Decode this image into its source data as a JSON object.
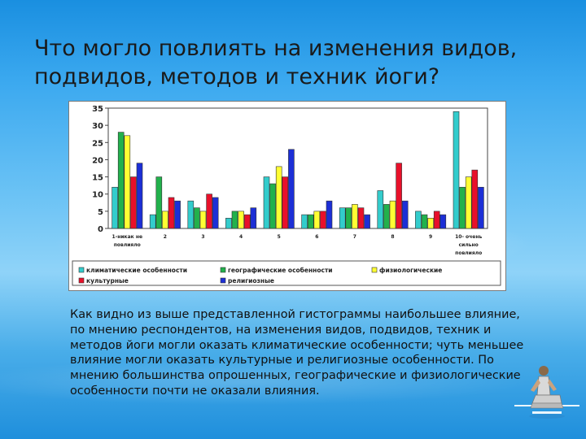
{
  "slide": {
    "title_lines": [
      "Что могло повлиять на изменения видов,",
      "подвидов, методов и техник йоги?"
    ],
    "body_text": "Как видно из выше представленной гистограммы наибольшее влияние, по мнению респондентов, на изменения видов, подвидов, техник и методов йоги могли оказать климатические особенности; чуть меньшее влияние могли оказать культурные и религиозные особенности. По мнению большинства опрошенных, географические и физиологические особенности почти не оказали влияния.",
    "image_icon": "yoga-figure-icon"
  },
  "chart_data": {
    "type": "bar",
    "y_ticks": [
      "0",
      "5",
      "10",
      "15",
      "20",
      "25",
      "30",
      "35"
    ],
    "ylim": [
      0,
      35
    ],
    "grid": false,
    "legend_position": "bottom",
    "categories": [
      [
        "1-никак не",
        "повлияло"
      ],
      [
        "2"
      ],
      [
        "3"
      ],
      [
        "4"
      ],
      [
        "5"
      ],
      [
        "6"
      ],
      [
        "7"
      ],
      [
        "8"
      ],
      [
        "9"
      ],
      [
        "10- очень",
        "сильно",
        "повлияло"
      ]
    ],
    "series": [
      {
        "name": "климатические особенности",
        "color": "#33cccc",
        "values": [
          12,
          4,
          8,
          3,
          15,
          4,
          6,
          11,
          5,
          34
        ]
      },
      {
        "name": "географические особенности",
        "color": "#22b14c",
        "values": [
          28,
          15,
          6,
          5,
          13,
          4,
          6,
          7,
          4,
          12
        ]
      },
      {
        "name": "физиологические",
        "color": "#ffff33",
        "values": [
          27,
          5,
          5,
          5,
          18,
          5,
          7,
          8,
          3,
          15
        ]
      },
      {
        "name": "культурные",
        "color": "#e8102a",
        "values": [
          15,
          9,
          10,
          4,
          15,
          5,
          6,
          19,
          5,
          17
        ]
      },
      {
        "name": "религиозные",
        "color": "#1c2fd6",
        "values": [
          19,
          8,
          9,
          6,
          23,
          8,
          4,
          8,
          4,
          12
        ]
      }
    ]
  }
}
